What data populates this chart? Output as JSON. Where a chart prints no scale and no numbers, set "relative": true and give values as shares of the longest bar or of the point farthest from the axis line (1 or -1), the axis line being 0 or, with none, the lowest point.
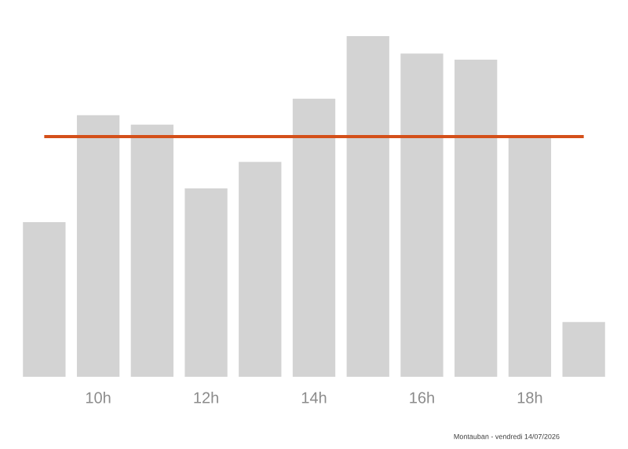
{
  "chart_data": {
    "type": "bar",
    "relative": true,
    "categories": [
      null,
      "10h",
      null,
      "12h",
      null,
      "14h",
      null,
      "16h",
      null,
      "18h",
      null
    ],
    "values": [
      0.454,
      0.768,
      0.74,
      0.553,
      0.631,
      0.816,
      1,
      0.949,
      0.931,
      0.701,
      0.161
    ],
    "color": "#d3d3d3",
    "ref_lines": [
      {
        "axis": "y",
        "value": 0.705,
        "color": "#d4501a"
      }
    ],
    "annotations": [
      "Montauban - vendredi 14/07/2026"
    ]
  }
}
